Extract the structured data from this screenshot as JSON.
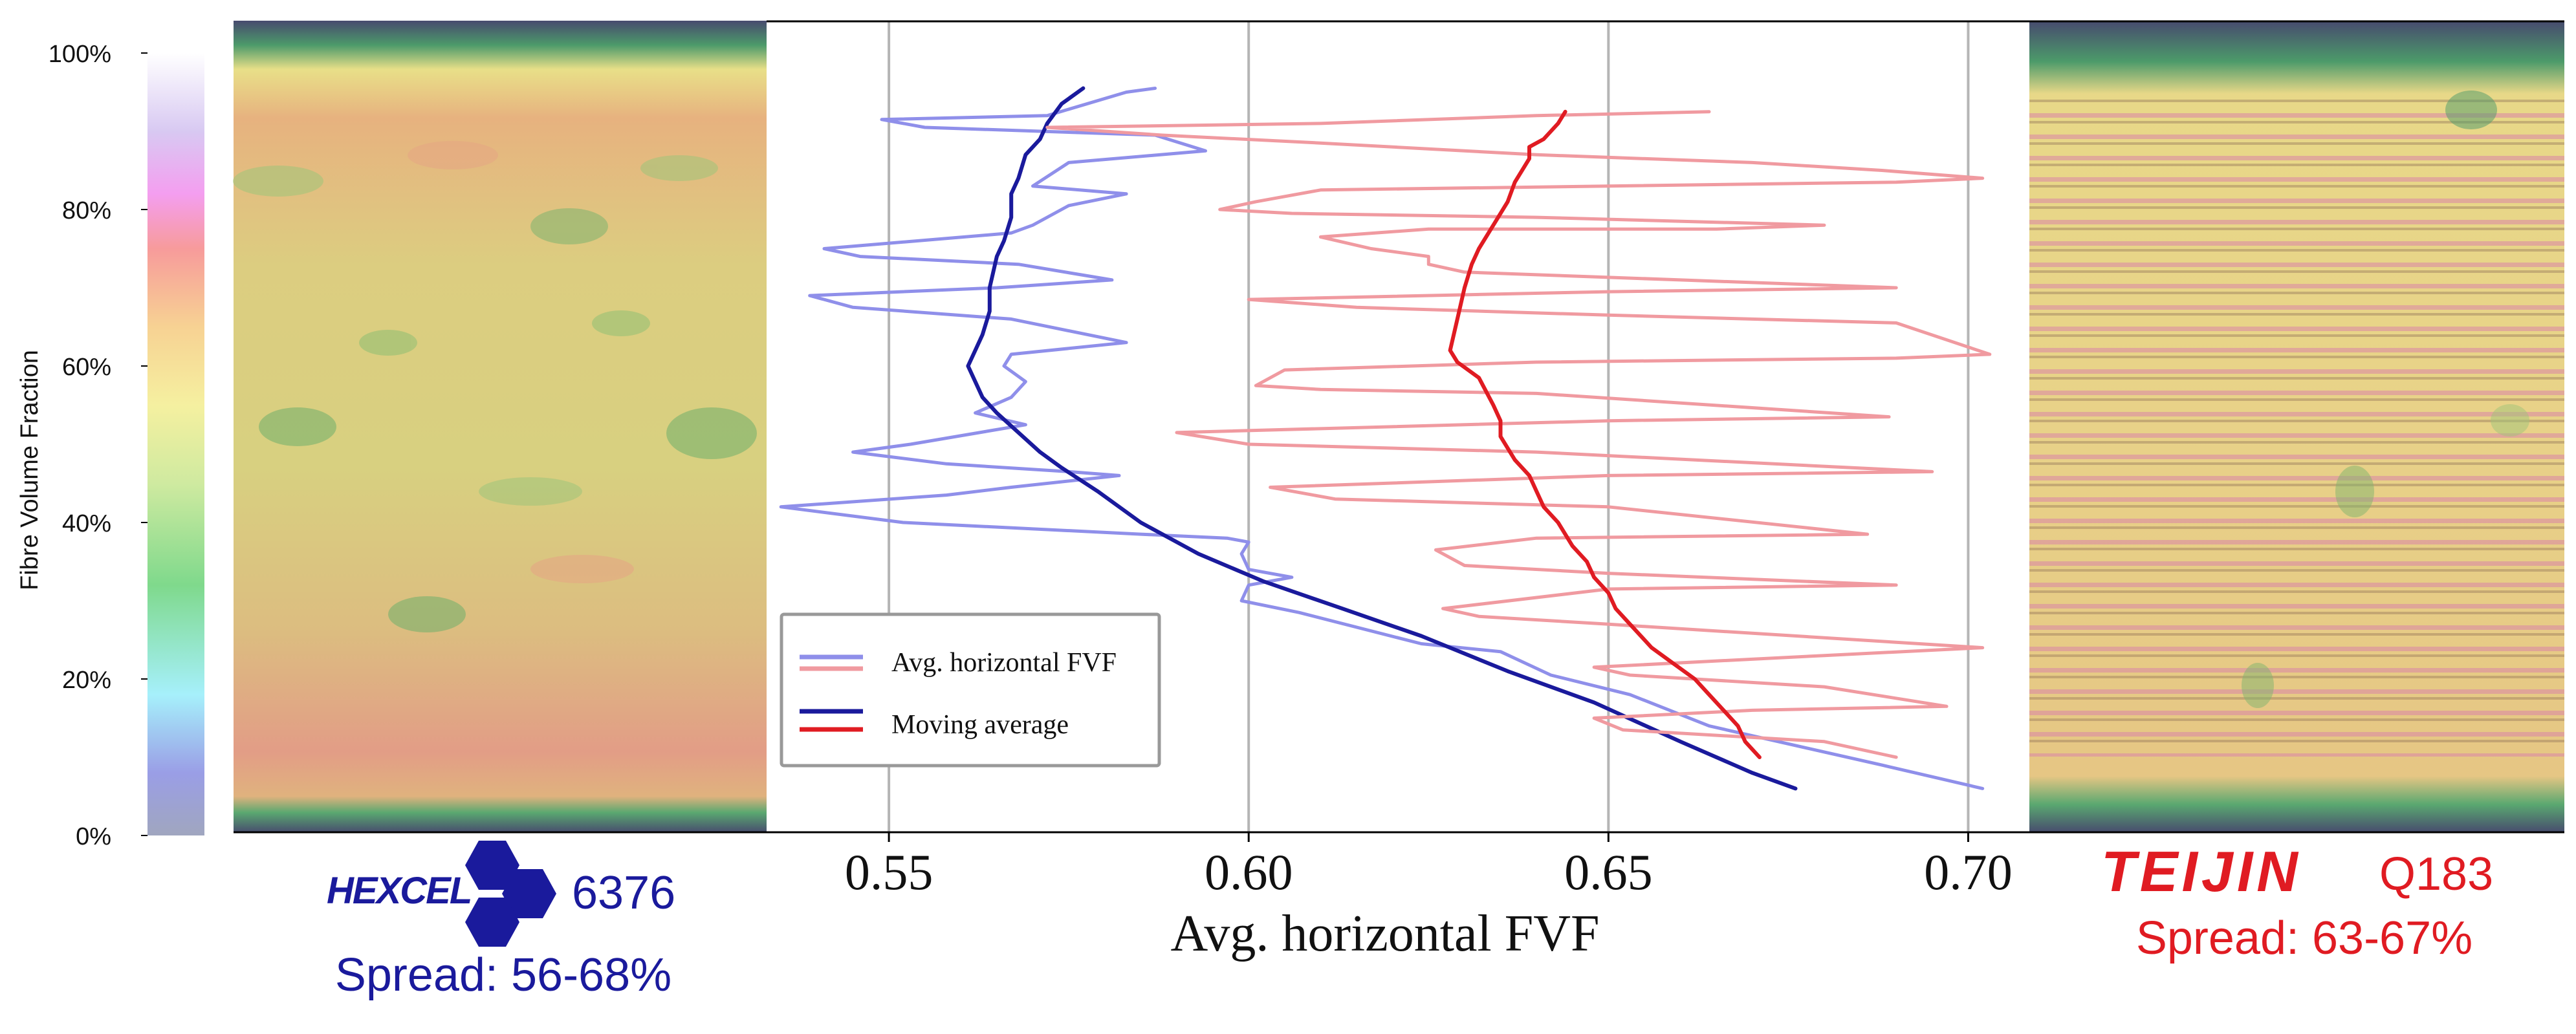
{
  "colorbar": {
    "label": "Fibre Volume Fraction",
    "ticks": [
      "0%",
      "20%",
      "40%",
      "60%",
      "80%",
      "100%"
    ]
  },
  "left_panel": {
    "brand": "HEXCEL",
    "product": "6376",
    "spread": "Spread: 56-68%",
    "color": "#1a1a9c"
  },
  "right_panel": {
    "brand": "TEIJIN",
    "product": "Q183",
    "spread": "Spread: 63-67%",
    "color": "#e01b22"
  },
  "chart_data": {
    "type": "line",
    "title": "",
    "xlabel": "Avg. horizontal FVF",
    "ylabel": "",
    "xlim": [
      0.533,
      0.7085
    ],
    "ylim": [
      0,
      100
    ],
    "x_ticks": [
      "0.55",
      "0.60",
      "0.65",
      "0.70"
    ],
    "y_ticks": [
      "0%",
      "20%",
      "40%",
      "60%",
      "80%",
      "100%"
    ],
    "grid": "vertical",
    "legend": {
      "placement": "lower-left",
      "entries": [
        {
          "label": "Avg. horizontal FVF",
          "colors": [
            "#8f8fea",
            "#f09aa0"
          ]
        },
        {
          "label": "Moving average",
          "colors": [
            "#1a1a9c",
            "#e01b22"
          ]
        }
      ]
    },
    "series": [
      {
        "color": "#8f8fea",
        "points": [
          [
            0.587,
            95.5
          ],
          [
            0.583,
            95
          ],
          [
            0.572,
            92
          ],
          [
            0.549,
            91.5
          ],
          [
            0.555,
            90.5
          ],
          [
            0.587,
            89.5
          ],
          [
            0.594,
            87.5
          ],
          [
            0.575,
            86
          ],
          [
            0.57,
            83
          ],
          [
            0.583,
            82
          ],
          [
            0.575,
            80.5
          ],
          [
            0.57,
            78
          ],
          [
            0.567,
            77
          ],
          [
            0.541,
            75
          ],
          [
            0.546,
            74
          ],
          [
            0.568,
            73
          ],
          [
            0.581,
            71
          ],
          [
            0.565,
            70
          ],
          [
            0.539,
            69
          ],
          [
            0.545,
            67.5
          ],
          [
            0.567,
            66
          ],
          [
            0.583,
            63
          ],
          [
            0.567,
            61.5
          ],
          [
            0.566,
            60
          ],
          [
            0.569,
            58
          ],
          [
            0.567,
            56
          ],
          [
            0.562,
            54
          ],
          [
            0.569,
            52.5
          ],
          [
            0.553,
            50
          ],
          [
            0.545,
            49
          ],
          [
            0.558,
            47.5
          ],
          [
            0.575,
            46.5
          ],
          [
            0.582,
            46
          ],
          [
            0.567,
            44.5
          ],
          [
            0.558,
            43.5
          ],
          [
            0.535,
            42
          ],
          [
            0.552,
            40
          ],
          [
            0.585,
            38.5
          ],
          [
            0.597,
            38
          ],
          [
            0.6,
            37.5
          ],
          [
            0.599,
            36
          ],
          [
            0.6,
            34
          ],
          [
            0.606,
            33
          ],
          [
            0.6,
            32
          ],
          [
            0.599,
            30
          ],
          [
            0.607,
            28.5
          ],
          [
            0.624,
            24.5
          ],
          [
            0.635,
            23.5
          ],
          [
            0.642,
            20.5
          ],
          [
            0.653,
            18
          ],
          [
            0.664,
            14
          ],
          [
            0.688,
            9
          ],
          [
            0.702,
            6
          ]
        ]
      },
      {
        "color": "#1a1a9c",
        "points": [
          [
            0.577,
            95.5
          ],
          [
            0.574,
            93.5
          ],
          [
            0.572,
            91
          ],
          [
            0.571,
            89
          ],
          [
            0.569,
            87
          ],
          [
            0.568,
            84
          ],
          [
            0.567,
            82
          ],
          [
            0.567,
            79
          ],
          [
            0.566,
            76
          ],
          [
            0.565,
            74
          ],
          [
            0.564,
            70
          ],
          [
            0.564,
            67
          ],
          [
            0.563,
            64
          ],
          [
            0.562,
            62
          ],
          [
            0.561,
            60
          ],
          [
            0.562,
            58
          ],
          [
            0.563,
            56
          ],
          [
            0.565,
            54
          ],
          [
            0.568,
            51.5
          ],
          [
            0.571,
            49
          ],
          [
            0.574,
            47
          ],
          [
            0.579,
            44
          ],
          [
            0.585,
            40
          ],
          [
            0.593,
            36
          ],
          [
            0.602,
            32.5
          ],
          [
            0.613,
            29
          ],
          [
            0.624,
            25.5
          ],
          [
            0.636,
            21
          ],
          [
            0.648,
            17
          ],
          [
            0.66,
            12
          ],
          [
            0.67,
            8
          ],
          [
            0.676,
            6
          ]
        ]
      },
      {
        "color": "#f09aa0",
        "points": [
          [
            0.664,
            92.5
          ],
          [
            0.64,
            92
          ],
          [
            0.61,
            91
          ],
          [
            0.572,
            90.5
          ],
          [
            0.588,
            89.5
          ],
          [
            0.61,
            88.5
          ],
          [
            0.64,
            87
          ],
          [
            0.67,
            86
          ],
          [
            0.688,
            85
          ],
          [
            0.702,
            84
          ],
          [
            0.69,
            83.5
          ],
          [
            0.65,
            83
          ],
          [
            0.61,
            82.5
          ],
          [
            0.601,
            81
          ],
          [
            0.596,
            80
          ],
          [
            0.606,
            79.5
          ],
          [
            0.64,
            79
          ],
          [
            0.68,
            78
          ],
          [
            0.665,
            77.5
          ],
          [
            0.625,
            77.5
          ],
          [
            0.61,
            76.5
          ],
          [
            0.617,
            75
          ],
          [
            0.625,
            74
          ],
          [
            0.625,
            73
          ],
          [
            0.63,
            72
          ],
          [
            0.66,
            71
          ],
          [
            0.69,
            70
          ],
          [
            0.65,
            69.5
          ],
          [
            0.6,
            68.5
          ],
          [
            0.615,
            67.5
          ],
          [
            0.65,
            66.5
          ],
          [
            0.69,
            65.5
          ],
          [
            0.703,
            61.5
          ],
          [
            0.69,
            61
          ],
          [
            0.64,
            60.5
          ],
          [
            0.605,
            59.5
          ],
          [
            0.601,
            57.5
          ],
          [
            0.61,
            57
          ],
          [
            0.64,
            56.5
          ],
          [
            0.689,
            53.5
          ],
          [
            0.65,
            53
          ],
          [
            0.59,
            51.5
          ],
          [
            0.6,
            50
          ],
          [
            0.64,
            49
          ],
          [
            0.695,
            46.5
          ],
          [
            0.65,
            46
          ],
          [
            0.603,
            44.5
          ],
          [
            0.612,
            43
          ],
          [
            0.65,
            42
          ],
          [
            0.686,
            38.5
          ],
          [
            0.64,
            38
          ],
          [
            0.626,
            36.5
          ],
          [
            0.63,
            34.5
          ],
          [
            0.65,
            33.5
          ],
          [
            0.69,
            32
          ],
          [
            0.65,
            31.5
          ],
          [
            0.627,
            29
          ],
          [
            0.632,
            28
          ],
          [
            0.65,
            27
          ],
          [
            0.702,
            24
          ],
          [
            0.68,
            23
          ],
          [
            0.648,
            21.5
          ],
          [
            0.653,
            20.5
          ],
          [
            0.68,
            19
          ],
          [
            0.697,
            16.5
          ],
          [
            0.67,
            16
          ],
          [
            0.648,
            15
          ],
          [
            0.652,
            13.5
          ],
          [
            0.68,
            12
          ],
          [
            0.69,
            10
          ]
        ]
      },
      {
        "color": "#e01b22",
        "points": [
          [
            0.644,
            92.5
          ],
          [
            0.643,
            91
          ],
          [
            0.641,
            89
          ],
          [
            0.639,
            88
          ],
          [
            0.639,
            86.5
          ],
          [
            0.637,
            83.5
          ],
          [
            0.636,
            81
          ],
          [
            0.634,
            78
          ],
          [
            0.632,
            75
          ],
          [
            0.631,
            73
          ],
          [
            0.63,
            70
          ],
          [
            0.629,
            66
          ],
          [
            0.628,
            62
          ],
          [
            0.629,
            60.5
          ],
          [
            0.632,
            58.5
          ],
          [
            0.634,
            55
          ],
          [
            0.635,
            53
          ],
          [
            0.635,
            51
          ],
          [
            0.637,
            48
          ],
          [
            0.639,
            46
          ],
          [
            0.64,
            44
          ],
          [
            0.641,
            42
          ],
          [
            0.643,
            40
          ],
          [
            0.645,
            37
          ],
          [
            0.647,
            35
          ],
          [
            0.648,
            33
          ],
          [
            0.65,
            31
          ],
          [
            0.651,
            29
          ],
          [
            0.653,
            27
          ],
          [
            0.656,
            24
          ],
          [
            0.659,
            22
          ],
          [
            0.662,
            20
          ],
          [
            0.664,
            18
          ],
          [
            0.666,
            16
          ],
          [
            0.668,
            14
          ],
          [
            0.669,
            12
          ],
          [
            0.671,
            10
          ]
        ]
      }
    ]
  }
}
